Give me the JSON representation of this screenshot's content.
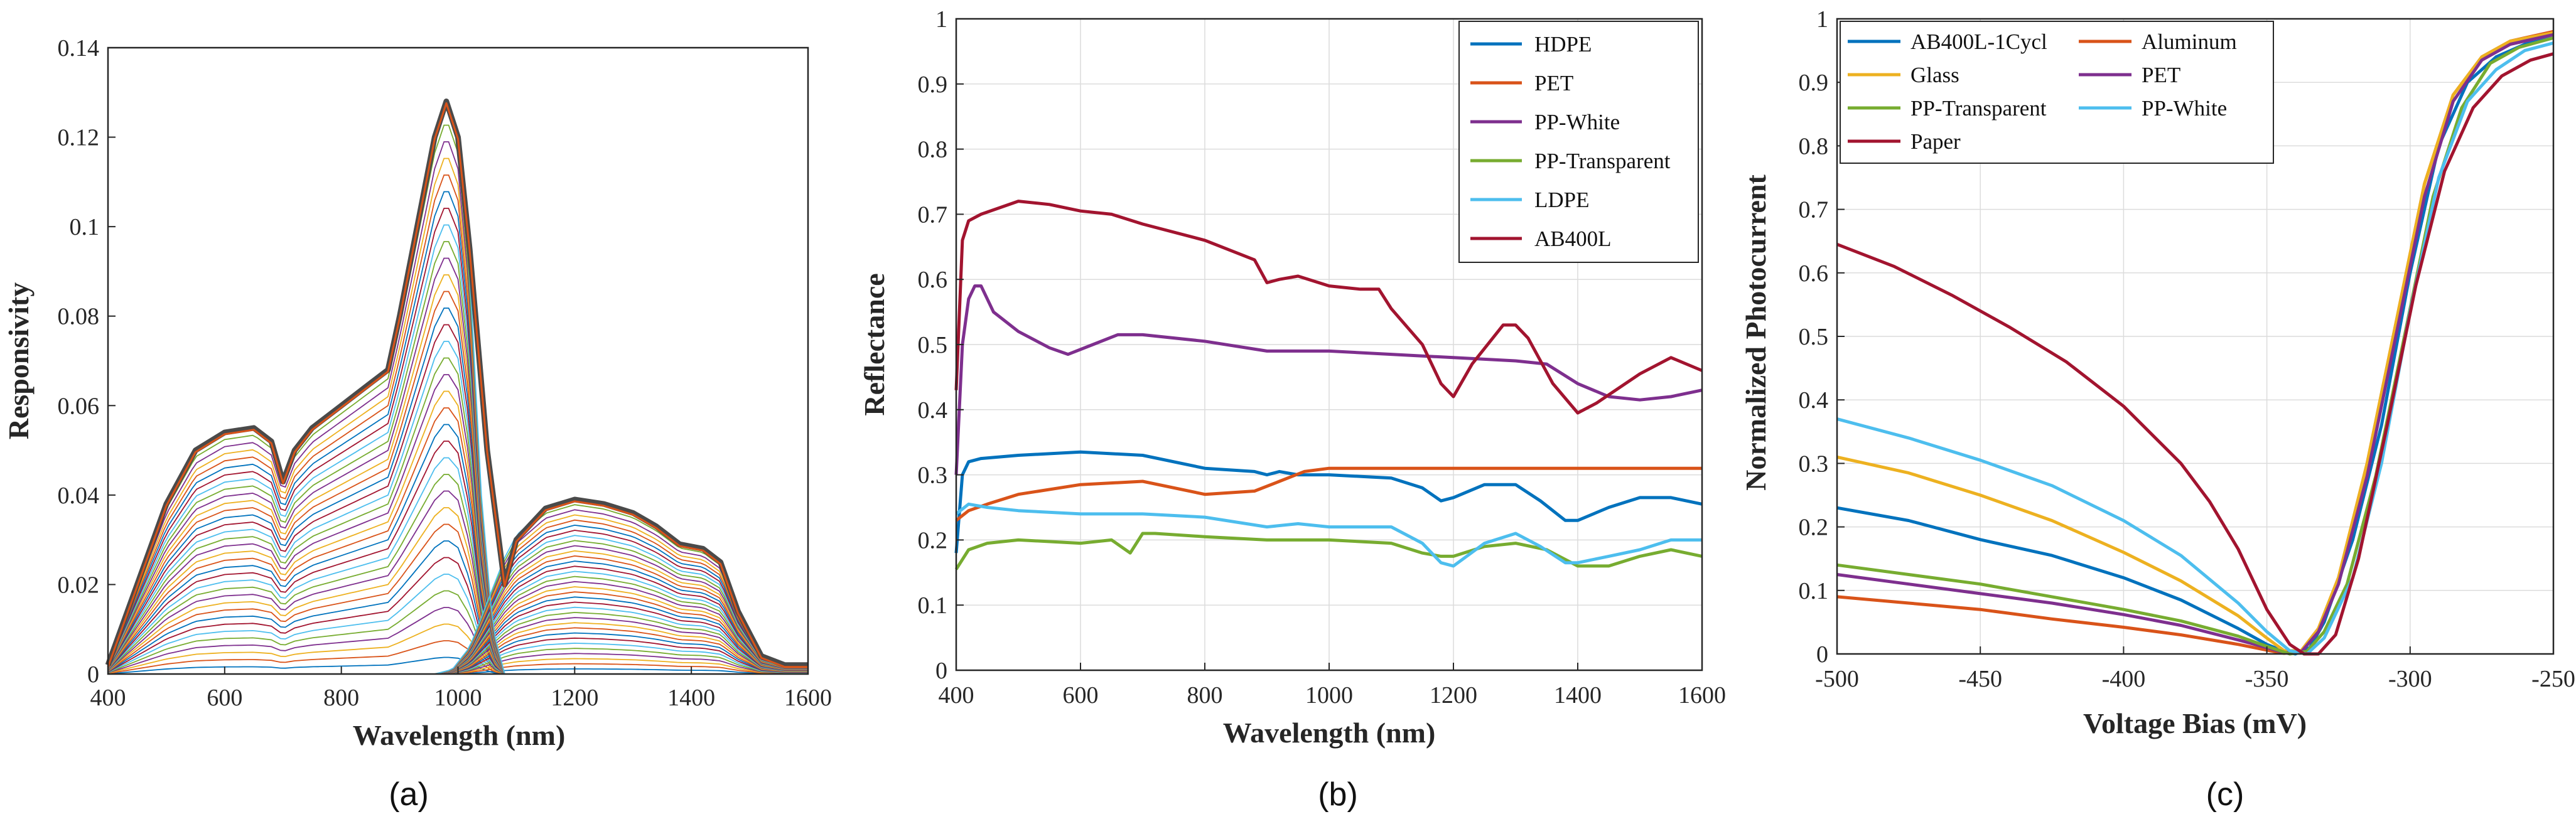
{
  "chart_data": [
    {
      "type": "line",
      "panel_label": "(a)",
      "title": "",
      "xlabel": "Wavelength (nm)",
      "ylabel": "Responsivity",
      "xlim": [
        400,
        1600
      ],
      "ylim": [
        0,
        0.14
      ],
      "xticks": [
        "400",
        "600",
        "800",
        "1000",
        "1200",
        "1400",
        "1600"
      ],
      "yticks": [
        "0",
        "0.02",
        "0.04",
        "0.06",
        "0.08",
        "0.1",
        "0.12",
        "0.14"
      ],
      "grid": false,
      "legend": "none",
      "curve_count": 34,
      "envelope": {
        "x": [
          400,
          450,
          500,
          550,
          600,
          650,
          680,
          700,
          720,
          750,
          800,
          850,
          880,
          900,
          930,
          960,
          980,
          1000,
          1020,
          1050,
          1080,
          1100,
          1150,
          1200,
          1250,
          1300,
          1340,
          1380,
          1420,
          1450,
          1480,
          1520,
          1560,
          1600
        ],
        "y": [
          0.002,
          0.02,
          0.038,
          0.05,
          0.054,
          0.055,
          0.052,
          0.043,
          0.05,
          0.055,
          0.06,
          0.065,
          0.068,
          0.08,
          0.1,
          0.12,
          0.128,
          0.12,
          0.095,
          0.05,
          0.02,
          0.03,
          0.037,
          0.039,
          0.038,
          0.036,
          0.033,
          0.029,
          0.028,
          0.025,
          0.014,
          0.004,
          0.002,
          0.002
        ]
      },
      "left_component": {
        "x": [
          400,
          450,
          500,
          550,
          600,
          650,
          680,
          700,
          720,
          750,
          800,
          850,
          880,
          900,
          930,
          960,
          980,
          1000,
          1020,
          1040,
          1060,
          1080
        ],
        "y": [
          0.002,
          0.02,
          0.038,
          0.05,
          0.054,
          0.055,
          0.052,
          0.043,
          0.05,
          0.055,
          0.06,
          0.065,
          0.068,
          0.08,
          0.1,
          0.12,
          0.128,
          0.12,
          0.09,
          0.04,
          0.01,
          0.0
        ]
      },
      "right_component": {
        "x": [
          960,
          990,
          1020,
          1050,
          1080,
          1100,
          1150,
          1200,
          1250,
          1300,
          1340,
          1380,
          1420,
          1450,
          1480,
          1520,
          1560,
          1600
        ],
        "y": [
          0.0,
          0.001,
          0.006,
          0.016,
          0.026,
          0.031,
          0.037,
          0.039,
          0.038,
          0.036,
          0.033,
          0.029,
          0.028,
          0.025,
          0.014,
          0.004,
          0.002,
          0.002
        ]
      },
      "palette": [
        "#0072BD",
        "#D95319",
        "#EDB120",
        "#7E2F8E",
        "#77AC30",
        "#4DBEEE",
        "#A2142F"
      ]
    },
    {
      "type": "line",
      "panel_label": "(b)",
      "title": "",
      "xlabel": "Wavelength (nm)",
      "ylabel": "Reflectance",
      "xlim": [
        400,
        1600
      ],
      "ylim": [
        0,
        1
      ],
      "xticks": [
        "400",
        "600",
        "800",
        "1000",
        "1200",
        "1400",
        "1600"
      ],
      "yticks": [
        "0",
        "0.1",
        "0.2",
        "0.3",
        "0.4",
        "0.5",
        "0.6",
        "0.7",
        "0.8",
        "0.9",
        "1"
      ],
      "grid": true,
      "legend": "top-right",
      "series": [
        {
          "name": "HDPE",
          "color": "#0072BD",
          "x": [
            400,
            410,
            420,
            440,
            500,
            600,
            700,
            800,
            880,
            900,
            920,
            950,
            1000,
            1100,
            1150,
            1180,
            1200,
            1250,
            1300,
            1340,
            1380,
            1400,
            1450,
            1500,
            1550,
            1600
          ],
          "y": [
            0.18,
            0.3,
            0.32,
            0.325,
            0.33,
            0.335,
            0.33,
            0.31,
            0.305,
            0.3,
            0.305,
            0.3,
            0.3,
            0.295,
            0.28,
            0.26,
            0.265,
            0.285,
            0.285,
            0.26,
            0.23,
            0.23,
            0.25,
            0.265,
            0.265,
            0.255
          ]
        },
        {
          "name": "PET",
          "color": "#D95319",
          "x": [
            400,
            420,
            450,
            500,
            600,
            700,
            800,
            880,
            920,
            960,
            1000,
            1100,
            1200,
            1300,
            1400,
            1500,
            1600
          ],
          "y": [
            0.23,
            0.245,
            0.255,
            0.27,
            0.285,
            0.29,
            0.27,
            0.275,
            0.29,
            0.305,
            0.31,
            0.31,
            0.31,
            0.31,
            0.31,
            0.31,
            0.31
          ]
        },
        {
          "name": "PP-White",
          "color": "#7E2F8E",
          "x": [
            400,
            410,
            420,
            430,
            440,
            460,
            500,
            550,
            580,
            620,
            660,
            700,
            800,
            900,
            1000,
            1100,
            1200,
            1300,
            1350,
            1400,
            1450,
            1500,
            1550,
            1600
          ],
          "y": [
            0.3,
            0.5,
            0.57,
            0.59,
            0.59,
            0.55,
            0.52,
            0.495,
            0.485,
            0.5,
            0.515,
            0.515,
            0.505,
            0.49,
            0.49,
            0.485,
            0.48,
            0.475,
            0.47,
            0.44,
            0.42,
            0.415,
            0.42,
            0.43
          ]
        },
        {
          "name": "PP-Transparent",
          "color": "#77AC30",
          "x": [
            400,
            420,
            450,
            500,
            600,
            650,
            680,
            700,
            720,
            800,
            900,
            1000,
            1100,
            1150,
            1180,
            1200,
            1250,
            1300,
            1350,
            1400,
            1450,
            1500,
            1550,
            1600
          ],
          "y": [
            0.155,
            0.185,
            0.195,
            0.2,
            0.195,
            0.2,
            0.18,
            0.21,
            0.21,
            0.205,
            0.2,
            0.2,
            0.195,
            0.18,
            0.175,
            0.175,
            0.19,
            0.195,
            0.185,
            0.16,
            0.16,
            0.175,
            0.185,
            0.175
          ]
        },
        {
          "name": "LDPE",
          "color": "#4DBEEE",
          "x": [
            400,
            420,
            450,
            500,
            600,
            700,
            800,
            900,
            950,
            1000,
            1100,
            1150,
            1180,
            1200,
            1250,
            1300,
            1340,
            1380,
            1400,
            1450,
            1500,
            1550,
            1600
          ],
          "y": [
            0.24,
            0.255,
            0.25,
            0.245,
            0.24,
            0.24,
            0.235,
            0.22,
            0.225,
            0.22,
            0.22,
            0.195,
            0.165,
            0.16,
            0.195,
            0.21,
            0.19,
            0.165,
            0.165,
            0.175,
            0.185,
            0.2,
            0.2
          ]
        },
        {
          "name": "AB400L",
          "color": "#A2142F",
          "x": [
            400,
            410,
            420,
            440,
            500,
            550,
            600,
            650,
            700,
            800,
            880,
            900,
            920,
            950,
            1000,
            1050,
            1080,
            1100,
            1150,
            1180,
            1200,
            1230,
            1280,
            1300,
            1320,
            1360,
            1400,
            1430,
            1500,
            1550,
            1600
          ],
          "y": [
            0.43,
            0.66,
            0.69,
            0.7,
            0.72,
            0.715,
            0.705,
            0.7,
            0.685,
            0.66,
            0.63,
            0.595,
            0.6,
            0.605,
            0.59,
            0.585,
            0.585,
            0.555,
            0.5,
            0.44,
            0.42,
            0.47,
            0.53,
            0.53,
            0.51,
            0.44,
            0.395,
            0.41,
            0.455,
            0.48,
            0.46
          ]
        }
      ]
    },
    {
      "type": "line",
      "panel_label": "(c)",
      "title": "",
      "xlabel": "Voltage Bias (mV)",
      "ylabel": "Normalized Photocurrent",
      "xlim": [
        -500,
        -250
      ],
      "ylim": [
        0,
        1
      ],
      "xticks": [
        "-500",
        "-450",
        "-400",
        "-350",
        "-300",
        "-250"
      ],
      "yticks": [
        "0",
        "0.1",
        "0.2",
        "0.3",
        "0.4",
        "0.5",
        "0.6",
        "0.7",
        "0.8",
        "0.9",
        "1"
      ],
      "grid": true,
      "legend": "top-left",
      "series": [
        {
          "name": "AB400L-1Cycl",
          "color": "#0072BD",
          "x": [
            -500,
            -475,
            -450,
            -425,
            -400,
            -380,
            -360,
            -350,
            -344,
            -340,
            -335,
            -330,
            -320,
            -310,
            -300,
            -290,
            -280,
            -270,
            -260,
            -250
          ],
          "y": [
            0.23,
            0.21,
            0.18,
            0.155,
            0.12,
            0.085,
            0.04,
            0.015,
            0.004,
            0.0,
            0.01,
            0.05,
            0.18,
            0.36,
            0.6,
            0.8,
            0.9,
            0.94,
            0.96,
            0.97
          ]
        },
        {
          "name": "Aluminum",
          "color": "#D95319",
          "x": [
            -500,
            -475,
            -450,
            -425,
            -400,
            -380,
            -360,
            -350,
            -344,
            -338,
            -332,
            -325,
            -315,
            -305,
            -295,
            -285,
            -275,
            -265,
            -250
          ],
          "y": [
            0.09,
            0.08,
            0.07,
            0.055,
            0.042,
            0.03,
            0.015,
            0.006,
            0.001,
            0.005,
            0.04,
            0.12,
            0.3,
            0.52,
            0.74,
            0.88,
            0.94,
            0.965,
            0.98
          ]
        },
        {
          "name": "Glass",
          "color": "#EDB120",
          "x": [
            -500,
            -475,
            -450,
            -425,
            -400,
            -380,
            -360,
            -350,
            -344,
            -338,
            -332,
            -325,
            -315,
            -305,
            -295,
            -285,
            -275,
            -265,
            -250
          ],
          "y": [
            0.31,
            0.285,
            0.25,
            0.21,
            0.16,
            0.115,
            0.06,
            0.025,
            0.005,
            0.005,
            0.04,
            0.12,
            0.3,
            0.52,
            0.74,
            0.88,
            0.94,
            0.965,
            0.978
          ]
        },
        {
          "name": "PET",
          "color": "#7E2F8E",
          "x": [
            -500,
            -475,
            -450,
            -425,
            -400,
            -380,
            -360,
            -350,
            -344,
            -338,
            -332,
            -325,
            -315,
            -305,
            -295,
            -285,
            -275,
            -265,
            -250
          ],
          "y": [
            0.125,
            0.11,
            0.095,
            0.08,
            0.062,
            0.045,
            0.022,
            0.01,
            0.002,
            0.003,
            0.035,
            0.11,
            0.28,
            0.5,
            0.72,
            0.87,
            0.935,
            0.96,
            0.975
          ]
        },
        {
          "name": "PP-Transparent",
          "color": "#77AC30",
          "x": [
            -500,
            -475,
            -450,
            -425,
            -400,
            -380,
            -360,
            -350,
            -342,
            -336,
            -330,
            -322,
            -312,
            -302,
            -292,
            -282,
            -272,
            -262,
            -250
          ],
          "y": [
            0.14,
            0.125,
            0.11,
            0.09,
            0.07,
            0.052,
            0.028,
            0.012,
            0.0,
            0.004,
            0.035,
            0.11,
            0.28,
            0.5,
            0.72,
            0.86,
            0.93,
            0.955,
            0.97
          ]
        },
        {
          "name": "PP-White",
          "color": "#4DBEEE",
          "x": [
            -500,
            -475,
            -450,
            -425,
            -400,
            -380,
            -360,
            -350,
            -342,
            -336,
            -330,
            -320,
            -310,
            -300,
            -290,
            -280,
            -270,
            -260,
            -250
          ],
          "y": [
            0.37,
            0.34,
            0.305,
            0.265,
            0.21,
            0.155,
            0.08,
            0.035,
            0.005,
            0.0,
            0.025,
            0.12,
            0.3,
            0.54,
            0.75,
            0.87,
            0.92,
            0.95,
            0.962
          ]
        },
        {
          "name": "Paper",
          "color": "#A2142F",
          "x": [
            -500,
            -480,
            -460,
            -440,
            -420,
            -400,
            -380,
            -370,
            -360,
            -350,
            -342,
            -337,
            -332,
            -326,
            -318,
            -308,
            -298,
            -288,
            -278,
            -268,
            -258,
            -250
          ],
          "y": [
            0.645,
            0.61,
            0.565,
            0.515,
            0.46,
            0.39,
            0.3,
            0.24,
            0.165,
            0.07,
            0.015,
            0.0,
            0.0,
            0.03,
            0.15,
            0.36,
            0.58,
            0.76,
            0.86,
            0.91,
            0.935,
            0.945
          ]
        }
      ]
    }
  ]
}
